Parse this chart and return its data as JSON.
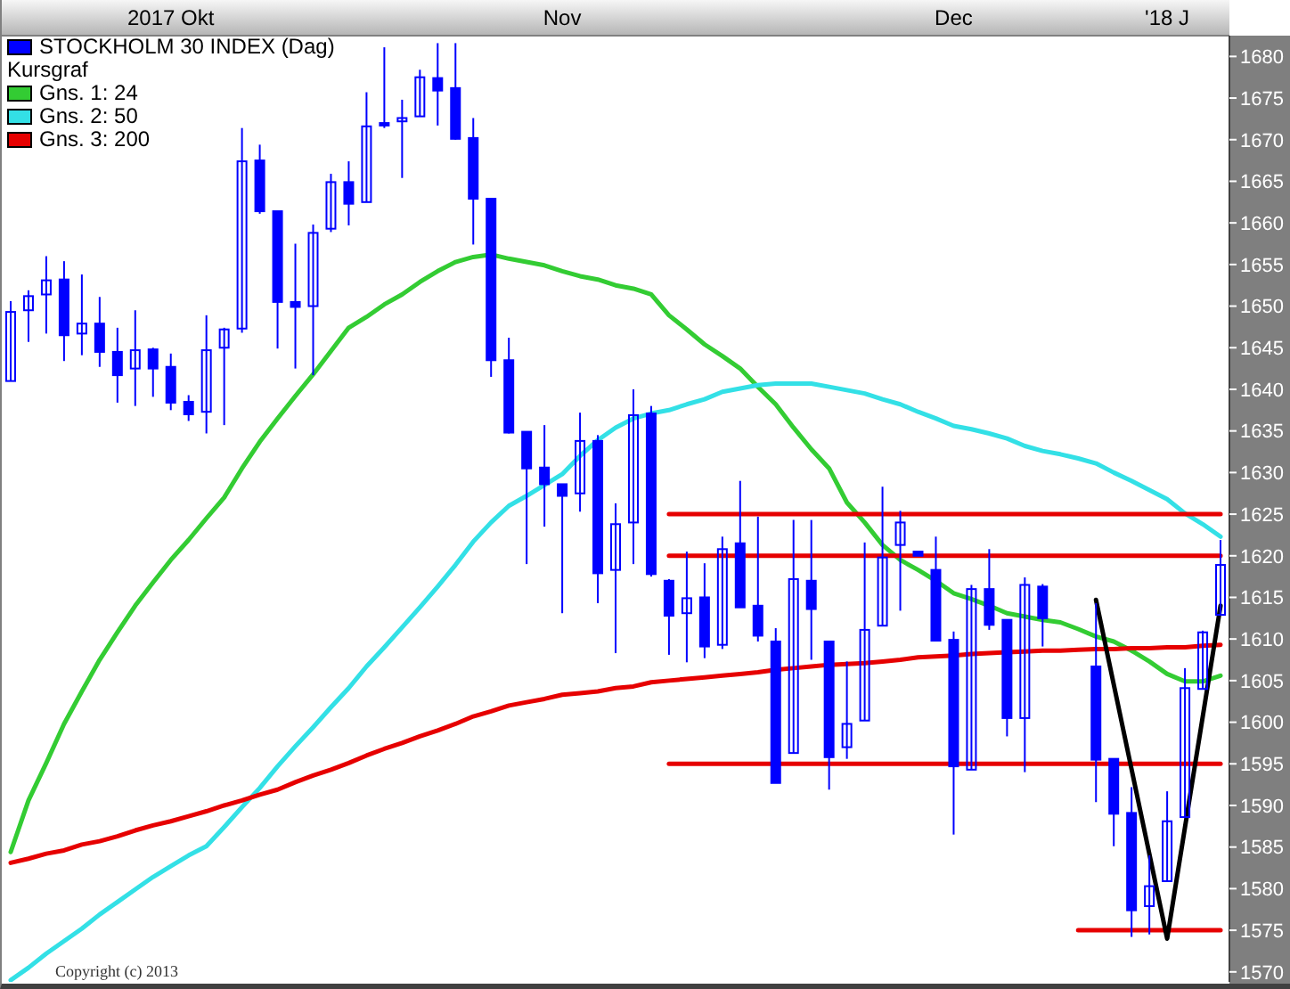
{
  "chart_data": {
    "type": "candlestick",
    "categories": [
      null,
      null,
      null,
      null,
      null,
      null,
      null,
      null,
      null,
      "2017 Okt",
      null,
      null,
      null,
      null,
      null,
      null,
      null,
      null,
      null,
      null,
      null,
      null,
      null,
      null,
      null,
      null,
      null,
      null,
      null,
      null,
      null,
      "Nov",
      null,
      null,
      null,
      null,
      null,
      null,
      null,
      null,
      null,
      null,
      null,
      null,
      null,
      null,
      null,
      null,
      null,
      null,
      null,
      null,
      null,
      "Dec",
      null,
      null,
      null,
      null,
      null,
      null,
      null,
      null,
      null,
      null,
      null,
      "'18 J",
      null,
      null,
      null
    ],
    "series": [
      {
        "name": "STOCKHOLM 30 INDEX (Dag)",
        "color": "#0000ff",
        "ohlc": [
          [
            1641,
            1650.6,
            1641,
            1649.3
          ],
          [
            1649.5,
            1651.9,
            1645.7,
            1651.2
          ],
          [
            1651.4,
            1656,
            1646.7,
            1653.1
          ],
          [
            1653.2,
            1655.4,
            1643.4,
            1646.5
          ],
          [
            1646.7,
            1653.8,
            1644.1,
            1647.9
          ],
          [
            1647.9,
            1651.1,
            1642.7,
            1644.5
          ],
          [
            1644.5,
            1647.4,
            1638.4,
            1641.7
          ],
          [
            1642.5,
            1649.5,
            1638,
            1644.7
          ],
          [
            1644.8,
            1645,
            1639.1,
            1642.5
          ],
          [
            1642.7,
            1644.3,
            1637.5,
            1638.4
          ],
          [
            1638.5,
            1639.3,
            1636.2,
            1637
          ],
          [
            1637.3,
            1648.9,
            1634.7,
            1644.7
          ],
          [
            1645,
            1647.4,
            1635.7,
            1647.2
          ],
          [
            1647.3,
            1671.4,
            1646.8,
            1667.4
          ],
          [
            1667.5,
            1669.4,
            1661.1,
            1661.4
          ],
          [
            1661.4,
            1661.4,
            1644.9,
            1650.5
          ],
          [
            1650.5,
            1657.5,
            1642.5,
            1649.9
          ],
          [
            1650,
            1659.8,
            1641.7,
            1658.8
          ],
          [
            1659.3,
            1665.9,
            1658.9,
            1664.9
          ],
          [
            1664.9,
            1667.4,
            1659.7,
            1662.3
          ],
          [
            1662.5,
            1675.7,
            1662.5,
            1671.6
          ],
          [
            1672,
            1681.1,
            1671.4,
            1671.7
          ],
          [
            1672.2,
            1674.8,
            1665.4,
            1672.6
          ],
          [
            1672.8,
            1678.4,
            1672.8,
            1677.5
          ],
          [
            1677.4,
            1681.6,
            1671.7,
            1675.9
          ],
          [
            1676.2,
            1681.6,
            1670,
            1670.1
          ],
          [
            1670.2,
            1672.6,
            1657.4,
            1662.9
          ],
          [
            1662.9,
            1662.9,
            1641.5,
            1643.5
          ],
          [
            1643.5,
            1646.2,
            1634.7,
            1634.8
          ],
          [
            1634.9,
            1634.9,
            1619,
            1630.5
          ],
          [
            1630.6,
            1635.7,
            1623.5,
            1628.6
          ],
          [
            1628.6,
            1628.6,
            1613.1,
            1627.2
          ],
          [
            1627.5,
            1637.2,
            1625.3,
            1633.8
          ],
          [
            1633.8,
            1634.5,
            1614.3,
            1617.9
          ],
          [
            1618.3,
            1626.3,
            1608.3,
            1623.8
          ],
          [
            1624,
            1640,
            1619,
            1636.9
          ],
          [
            1637.1,
            1638,
            1617.5,
            1617.8
          ],
          [
            1617,
            1617.2,
            1608.1,
            1612.8
          ],
          [
            1613.1,
            1620.5,
            1607.2,
            1614.9
          ],
          [
            1615,
            1619.1,
            1607.7,
            1609.1
          ],
          [
            1609.3,
            1622.3,
            1608.8,
            1620.8
          ],
          [
            1621.5,
            1629,
            1613.8,
            1613.8
          ],
          [
            1614,
            1624.7,
            1609.7,
            1610.4
          ],
          [
            1609.7,
            1611.3,
            1592.7,
            1592.7
          ],
          [
            1596.3,
            1624.3,
            1596.3,
            1617.2
          ],
          [
            1617,
            1624.3,
            1607.5,
            1613.6
          ],
          [
            1609.7,
            1609.7,
            1591.9,
            1595.8
          ],
          [
            1597,
            1607.3,
            1595.6,
            1599.8
          ],
          [
            1600.2,
            1621.6,
            1600.2,
            1611.1
          ],
          [
            1611.6,
            1628.3,
            1611.6,
            1619.8
          ],
          [
            1621.3,
            1625.4,
            1613.4,
            1624
          ],
          [
            1620.5,
            1620.5,
            1620,
            1620
          ],
          [
            1618.3,
            1622.3,
            1609.8,
            1609.8
          ],
          [
            1609.9,
            1610.9,
            1586.5,
            1594.7
          ],
          [
            1594.3,
            1616.5,
            1594.3,
            1616
          ],
          [
            1616,
            1620.8,
            1611.1,
            1611.7
          ],
          [
            1612.3,
            1612.3,
            1598.3,
            1600.5
          ],
          [
            1600.5,
            1617.4,
            1594,
            1616.5
          ],
          [
            1616.3,
            1616.6,
            1609.1,
            1612.5
          ],
          null,
          null,
          [
            1606.7,
            1614.3,
            1590.4,
            1595.5
          ],
          [
            1595.6,
            1595.6,
            1585.1,
            1589
          ],
          [
            1589.1,
            1592.2,
            1574.2,
            1577.4
          ],
          [
            1577.9,
            1584,
            1574.5,
            1580.3
          ],
          [
            1580.9,
            1591.7,
            1580.9,
            1588.1
          ],
          [
            1588.6,
            1606.5,
            1588.6,
            1604.1
          ],
          [
            1604,
            1611,
            1604,
            1610.8
          ],
          [
            1612.9,
            1621.9,
            1612.9,
            1618.9
          ]
        ]
      },
      {
        "type": "line",
        "name": "Gns. 1: 24",
        "color": "#33cc33",
        "values": [
          1584.4,
          1590.6,
          1595.1,
          1599.8,
          1603.7,
          1607.5,
          1610.8,
          1614.0,
          1616.8,
          1619.5,
          1621.9,
          1624.5,
          1627.0,
          1630.5,
          1633.7,
          1636.5,
          1639.2,
          1641.8,
          1644.6,
          1647.4,
          1648.7,
          1650.2,
          1651.4,
          1652.9,
          1654.2,
          1655.3,
          1655.9,
          1656.2,
          1655.7,
          1655.3,
          1654.9,
          1654.2,
          1653.6,
          1653.2,
          1652.5,
          1652.1,
          1651.4,
          1648.9,
          1647.2,
          1645.4,
          1644.0,
          1642.5,
          1640.3,
          1638.2,
          1635.4,
          1632.8,
          1630.5,
          1626.4,
          1624.0,
          1621.3,
          1619.5,
          1618.3,
          1617.0,
          1615.5,
          1614.8,
          1614.0,
          1613.1,
          1612.7,
          1612.3,
          1612.0,
          1611.2,
          1610.3,
          1609.7,
          1608.6,
          1607.3,
          1605.8,
          1604.9,
          1604.9,
          1605.6
        ]
      },
      {
        "type": "line",
        "name": "Gns. 2: 50",
        "color": "#33e0e6",
        "values": [
          1569.0,
          1570.5,
          1572.2,
          1573.7,
          1575.2,
          1576.9,
          1578.4,
          1579.9,
          1581.4,
          1582.7,
          1584.0,
          1585.1,
          1587.4,
          1589.8,
          1592.1,
          1594.7,
          1597.1,
          1599.4,
          1601.8,
          1604.1,
          1606.7,
          1609.0,
          1611.4,
          1613.8,
          1616.3,
          1618.9,
          1621.7,
          1624.0,
          1626.0,
          1627.2,
          1628.5,
          1629.8,
          1632.0,
          1633.9,
          1635.4,
          1636.5,
          1637.1,
          1637.5,
          1638.2,
          1638.8,
          1639.7,
          1640.1,
          1640.5,
          1640.7,
          1640.7,
          1640.7,
          1640.3,
          1639.9,
          1639.5,
          1638.8,
          1638.2,
          1637.3,
          1636.5,
          1635.6,
          1635.2,
          1634.7,
          1634.1,
          1633.2,
          1632.6,
          1632.2,
          1631.7,
          1631.1,
          1630.0,
          1629.0,
          1627.9,
          1626.8,
          1625.1,
          1623.8,
          1622.3
        ]
      },
      {
        "type": "line",
        "name": "Gns. 3: 200",
        "color": "#e60000",
        "values": [
          1583.1,
          1583.6,
          1584.2,
          1584.6,
          1585.3,
          1585.7,
          1586.3,
          1587.0,
          1587.6,
          1588.1,
          1588.7,
          1589.3,
          1590.0,
          1590.6,
          1591.3,
          1591.9,
          1592.8,
          1593.6,
          1594.3,
          1595.1,
          1596.0,
          1596.8,
          1597.5,
          1598.3,
          1599.0,
          1599.8,
          1600.7,
          1601.3,
          1602.0,
          1602.4,
          1602.8,
          1603.3,
          1603.5,
          1603.7,
          1604.1,
          1604.3,
          1604.8,
          1605.0,
          1605.2,
          1605.4,
          1605.6,
          1605.8,
          1606.0,
          1606.3,
          1606.5,
          1606.7,
          1606.9,
          1607.0,
          1607.1,
          1607.3,
          1607.5,
          1607.8,
          1607.9,
          1608.0,
          1608.2,
          1608.3,
          1608.4,
          1608.5,
          1608.6,
          1608.6,
          1608.7,
          1608.8,
          1608.8,
          1608.9,
          1608.9,
          1609.0,
          1609.0,
          1609.2,
          1609.3
        ]
      },
      {
        "type": "line",
        "color": "#e60000",
        "values": [
          null,
          null,
          null,
          null,
          null,
          null,
          null,
          null,
          null,
          null,
          null,
          null,
          null,
          null,
          null,
          null,
          null,
          null,
          null,
          null,
          null,
          null,
          null,
          null,
          null,
          null,
          null,
          null,
          null,
          null,
          null,
          null,
          null,
          null,
          null,
          null,
          null,
          1625,
          1625,
          1625,
          1625,
          1625,
          1625,
          1625,
          1625,
          1625,
          1625,
          1625,
          1625,
          1625,
          1625,
          1625,
          1625,
          1625,
          1625,
          1625,
          1625,
          1625,
          1625,
          1625,
          1625,
          1625,
          1625,
          1625,
          1625,
          1625,
          1625,
          1625,
          1625
        ]
      },
      {
        "type": "line",
        "color": "#e60000",
        "values": [
          null,
          null,
          null,
          null,
          null,
          null,
          null,
          null,
          null,
          null,
          null,
          null,
          null,
          null,
          null,
          null,
          null,
          null,
          null,
          null,
          null,
          null,
          null,
          null,
          null,
          null,
          null,
          null,
          null,
          null,
          null,
          null,
          null,
          null,
          null,
          null,
          null,
          1620,
          1620,
          1620,
          1620,
          1620,
          1620,
          1620,
          1620,
          1620,
          1620,
          1620,
          1620,
          1620,
          1620,
          1620,
          1620,
          1620,
          1620,
          1620,
          1620,
          1620,
          1620,
          1620,
          1620,
          1620,
          1620,
          1620,
          1620,
          1620,
          1620,
          1620,
          1620
        ]
      },
      {
        "type": "line",
        "color": "#e60000",
        "values": [
          null,
          null,
          null,
          null,
          null,
          null,
          null,
          null,
          null,
          null,
          null,
          null,
          null,
          null,
          null,
          null,
          null,
          null,
          null,
          null,
          null,
          null,
          null,
          null,
          null,
          null,
          null,
          null,
          null,
          null,
          null,
          null,
          null,
          null,
          null,
          null,
          null,
          1595,
          1595,
          1595,
          1595,
          1595,
          1595,
          1595,
          1595,
          1595,
          1595,
          1595,
          1595,
          1595,
          1595,
          1595,
          1595,
          1595,
          1595,
          1595,
          1595,
          1595,
          1595,
          1595,
          1595,
          1595,
          1595,
          1595,
          1595,
          1595,
          1595,
          1595,
          1595
        ]
      },
      {
        "type": "line",
        "color": "#e60000",
        "values": [
          null,
          null,
          null,
          null,
          null,
          null,
          null,
          null,
          null,
          null,
          null,
          null,
          null,
          null,
          null,
          null,
          null,
          null,
          null,
          null,
          null,
          null,
          null,
          null,
          null,
          null,
          null,
          null,
          null,
          null,
          null,
          null,
          null,
          null,
          null,
          null,
          null,
          null,
          null,
          null,
          null,
          null,
          null,
          null,
          null,
          null,
          null,
          null,
          null,
          null,
          null,
          null,
          null,
          null,
          null,
          null,
          null,
          null,
          null,
          null,
          1575,
          1575,
          1575,
          1575,
          1575,
          1575,
          1575,
          1575,
          1575
        ]
      },
      {
        "type": "line",
        "color": "#000000",
        "values": [
          null,
          null,
          null,
          null,
          null,
          null,
          null,
          null,
          null,
          null,
          null,
          null,
          null,
          null,
          null,
          null,
          null,
          null,
          null,
          null,
          null,
          null,
          null,
          null,
          null,
          null,
          null,
          null,
          null,
          null,
          null,
          null,
          null,
          null,
          null,
          null,
          null,
          null,
          null,
          null,
          null,
          null,
          null,
          null,
          null,
          null,
          null,
          null,
          null,
          null,
          null,
          null,
          null,
          null,
          null,
          null,
          null,
          null,
          null,
          null,
          null,
          1614.7,
          null,
          null,
          null,
          1574,
          null,
          null,
          1614
        ]
      }
    ],
    "ylim": [
      1568.8,
      1682.5
    ],
    "yticks": [
      1570,
      1575,
      1580,
      1585,
      1590,
      1595,
      1600,
      1605,
      1610,
      1615,
      1620,
      1625,
      1630,
      1635,
      1640,
      1645,
      1650,
      1655,
      1660,
      1665,
      1670,
      1675,
      1680
    ],
    "legend": "top left",
    "legend_title": "Kursgraf",
    "annotations": [
      "Copyright (c) 2013"
    ]
  }
}
